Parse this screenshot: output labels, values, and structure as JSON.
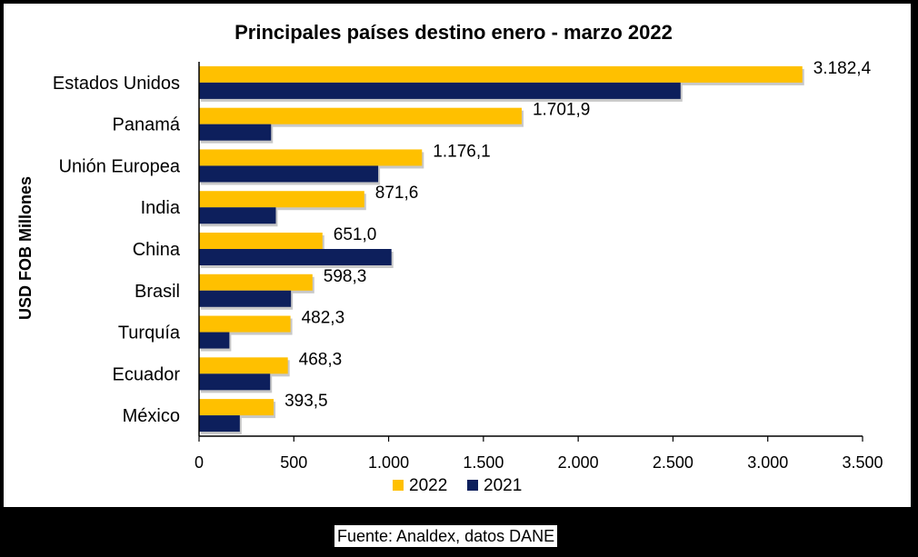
{
  "chart_data": {
    "type": "bar",
    "orientation": "horizontal",
    "title": "Principales países destino enero - marzo 2022",
    "ylabel": "USD FOB Millones",
    "xlabel": "",
    "xlim": [
      0,
      3500
    ],
    "xticks": [
      0,
      500,
      1000,
      1500,
      2000,
      2500,
      3000,
      3500
    ],
    "xtick_labels": [
      "0",
      "500",
      "1.000",
      "1.500",
      "2.000",
      "2.500",
      "3.000",
      "3.500"
    ],
    "categories": [
      "Estados Unidos",
      "Panamá",
      "Unión Europea",
      "India",
      "China",
      "Brasil",
      "Turquía",
      "Ecuador",
      "México"
    ],
    "series": [
      {
        "name": "2022",
        "color": "#FFC000",
        "values": [
          3182.4,
          1701.9,
          1176.1,
          871.6,
          651.0,
          598.3,
          482.3,
          468.3,
          393.5
        ],
        "labels": [
          "3.182,4",
          "1.701,9",
          "1.176,1",
          "871,6",
          "651,0",
          "598,3",
          "482,3",
          "468,3",
          "393,5"
        ]
      },
      {
        "name": "2021",
        "color": "#0D1F5C",
        "values": [
          2540,
          380,
          945,
          405,
          1015,
          485,
          160,
          375,
          215
        ]
      }
    ],
    "legend_position": "bottom",
    "grid": false
  },
  "source_note": "Fuente: Analdex, datos DANE"
}
